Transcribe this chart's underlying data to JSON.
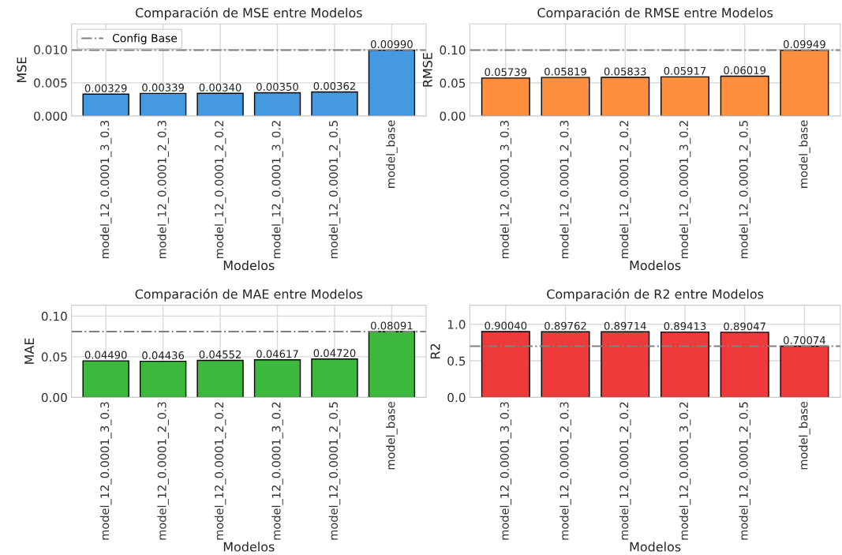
{
  "chart_data": [
    {
      "type": "bar",
      "title": "Comparación de MSE entre Modelos",
      "xlabel": "Modelos",
      "ylabel": "MSE",
      "categories": [
        "model_12_0.0001_3_0.3",
        "model_12_0.0001_2_0.3",
        "model_12_0.0001_2_0.2",
        "model_12_0.0001_3_0.2",
        "model_12_0.0001_2_0.5",
        "model_base"
      ],
      "values": [
        0.00329,
        0.00339,
        0.0034,
        0.0035,
        0.00362,
        0.0099
      ],
      "color": "#4499e0",
      "value_labels": [
        "0.00329",
        "0.00339",
        "0.00340",
        "0.00350",
        "0.00362",
        "0.00990"
      ],
      "ylim": [
        0,
        0.01386
      ],
      "yticks": [
        {
          "value": 0,
          "label": "0.000"
        },
        {
          "value": 0.005,
          "label": "0.005"
        },
        {
          "value": 0.01,
          "label": "0.010"
        }
      ],
      "ref_lines": [
        {
          "axis": "y",
          "value": 0.0099,
          "label": "Config Base",
          "color": "#808080",
          "line_style": "dashdot"
        }
      ],
      "legend": "top left",
      "grid": true
    },
    {
      "type": "bar",
      "title": "Comparación de RMSE entre Modelos",
      "xlabel": "Modelos",
      "ylabel": "RMSE",
      "categories": [
        "model_12_0.0001_3_0.3",
        "model_12_0.0001_2_0.3",
        "model_12_0.0001_2_0.2",
        "model_12_0.0001_3_0.2",
        "model_12_0.0001_2_0.5",
        "model_base"
      ],
      "values": [
        0.05739,
        0.05819,
        0.05833,
        0.05917,
        0.06019,
        0.09949
      ],
      "color": "#fd8f3e",
      "value_labels": [
        "0.05739",
        "0.05819",
        "0.05833",
        "0.05917",
        "0.06019",
        "0.09949"
      ],
      "ylim": [
        0,
        0.1393
      ],
      "yticks": [
        {
          "value": 0,
          "label": "0.00"
        },
        {
          "value": 0.05,
          "label": "0.05"
        },
        {
          "value": 0.1,
          "label": "0.10"
        }
      ],
      "ref_lines": [
        {
          "axis": "y",
          "value": 0.09949,
          "color": "#808080",
          "line_style": "dashdot"
        }
      ],
      "grid": true
    },
    {
      "type": "bar",
      "title": "Comparación de MAE entre Modelos",
      "xlabel": "Modelos",
      "ylabel": "MAE",
      "categories": [
        "model_12_0.0001_3_0.3",
        "model_12_0.0001_2_0.3",
        "model_12_0.0001_2_0.2",
        "model_12_0.0001_3_0.2",
        "model_12_0.0001_2_0.5",
        "model_base"
      ],
      "values": [
        0.0449,
        0.04436,
        0.04552,
        0.04617,
        0.0472,
        0.08091
      ],
      "color": "#3cb93c",
      "value_labels": [
        "0.04490",
        "0.04436",
        "0.04552",
        "0.04617",
        "0.04720",
        "0.08091"
      ],
      "ylim": [
        0,
        0.1133
      ],
      "yticks": [
        {
          "value": 0,
          "label": "0.00"
        },
        {
          "value": 0.05,
          "label": "0.05"
        },
        {
          "value": 0.1,
          "label": "0.10"
        }
      ],
      "ref_lines": [
        {
          "axis": "y",
          "value": 0.08091,
          "color": "#808080",
          "line_style": "dashdot"
        }
      ],
      "grid": true
    },
    {
      "type": "bar",
      "title": "Comparación de R2 entre Modelos",
      "xlabel": "Modelos",
      "ylabel": "R2",
      "categories": [
        "model_12_0.0001_3_0.3",
        "model_12_0.0001_2_0.3",
        "model_12_0.0001_2_0.2",
        "model_12_0.0001_3_0.2",
        "model_12_0.0001_2_0.5",
        "model_base"
      ],
      "values": [
        0.9004,
        0.89762,
        0.89714,
        0.89413,
        0.89047,
        0.70074
      ],
      "color": "#ee3a3a",
      "value_labels": [
        "0.90040",
        "0.89762",
        "0.89714",
        "0.89413",
        "0.89047",
        "0.70074"
      ],
      "ylim": [
        0,
        1.2606
      ],
      "yticks": [
        {
          "value": 0,
          "label": "0.0"
        },
        {
          "value": 0.5,
          "label": "0.5"
        },
        {
          "value": 1.0,
          "label": "1.0"
        }
      ],
      "ref_lines": [
        {
          "axis": "y",
          "value": 0.70074,
          "color": "#808080",
          "line_style": "dashdot"
        }
      ],
      "grid": true
    }
  ]
}
